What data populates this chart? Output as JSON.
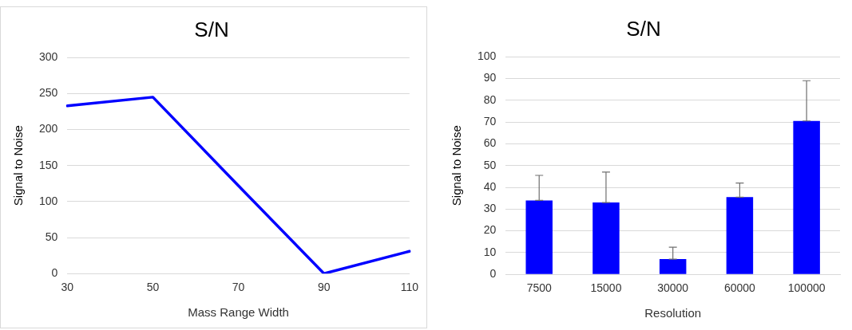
{
  "chart_data": [
    {
      "type": "line",
      "title": "S/N",
      "xlabel": "Mass Range Width",
      "ylabel": "Signal to Noise",
      "categories": [
        "30",
        "50",
        "70",
        "90",
        "110"
      ],
      "series": [
        {
          "color": "#0000ff",
          "values": [
            233,
            245,
            122,
            0,
            31
          ]
        }
      ],
      "ylim": [
        0,
        300
      ],
      "yticks": [
        0,
        50,
        100,
        150,
        200,
        250,
        300
      ],
      "grid": "y",
      "legend": false,
      "marker": "none"
    },
    {
      "type": "bar",
      "title": "S/N",
      "xlabel": "Resolution",
      "ylabel": "Signal to Noise",
      "categories": [
        "7500",
        "15000",
        "30000",
        "60000",
        "100000"
      ],
      "series": [
        {
          "color": "#0000ff",
          "values": [
            34,
            33,
            7,
            35.5,
            70.5
          ],
          "errors": [
            [
              34,
              45.5
            ],
            [
              33,
              47
            ],
            [
              7,
              12.5
            ],
            [
              35.5,
              42
            ],
            [
              70.5,
              89
            ]
          ]
        }
      ],
      "ylim": [
        0,
        100
      ],
      "yticks": [
        0,
        10,
        20,
        30,
        40,
        50,
        60,
        70,
        80,
        90,
        100
      ],
      "grid": "y",
      "legend": false
    }
  ]
}
